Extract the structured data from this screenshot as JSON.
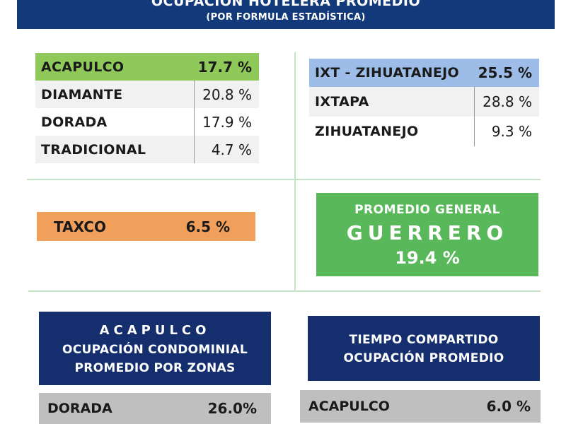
{
  "header": {
    "title": "OCUPACIÓN HOTELERA PROMEDIO",
    "subtitle": "(POR FORMULA ESTADÍSTICA)"
  },
  "acapulco_table": [
    {
      "name": "ACAPULCO",
      "value": "17.7 %"
    },
    {
      "name": "DIAMANTE",
      "value": "20.8 %"
    },
    {
      "name": "DORADA",
      "value": "17.9 %"
    },
    {
      "name": "TRADICIONAL",
      "value": "4.7 %"
    }
  ],
  "ixtapa_table": [
    {
      "name": "IXT - ZIHUATANEJO",
      "value": "25.5 %"
    },
    {
      "name": "IXTAPA",
      "value": "28.8 %"
    },
    {
      "name": "ZIHUATANEJO",
      "value": "9.3 %"
    }
  ],
  "taxco": {
    "name": "TAXCO",
    "value": "6.5 %"
  },
  "general": {
    "line1": "PROMEDIO GENERAL",
    "line2": "GUERRERO",
    "value": "19.4 %"
  },
  "condominial": {
    "line1": "ACAPULCO",
    "line2": "OCUPACIÓN CONDOMINIAL",
    "line3": "PROMEDIO POR ZONAS",
    "row": {
      "name": "DORADA",
      "value": "26.0%"
    }
  },
  "tiempo_compartido": {
    "line1": "TIEMPO COMPARTIDO",
    "line2": "OCUPACIÓN PROMEDIO",
    "row": {
      "name": "ACAPULCO",
      "value": "6.0 %"
    }
  },
  "colors": {
    "navy": "#123a7a",
    "light_green": "#8fc95a",
    "light_blue": "#9dbde8",
    "orange": "#f0a05a",
    "green": "#58b85a",
    "gray": "#bfbfbf"
  }
}
